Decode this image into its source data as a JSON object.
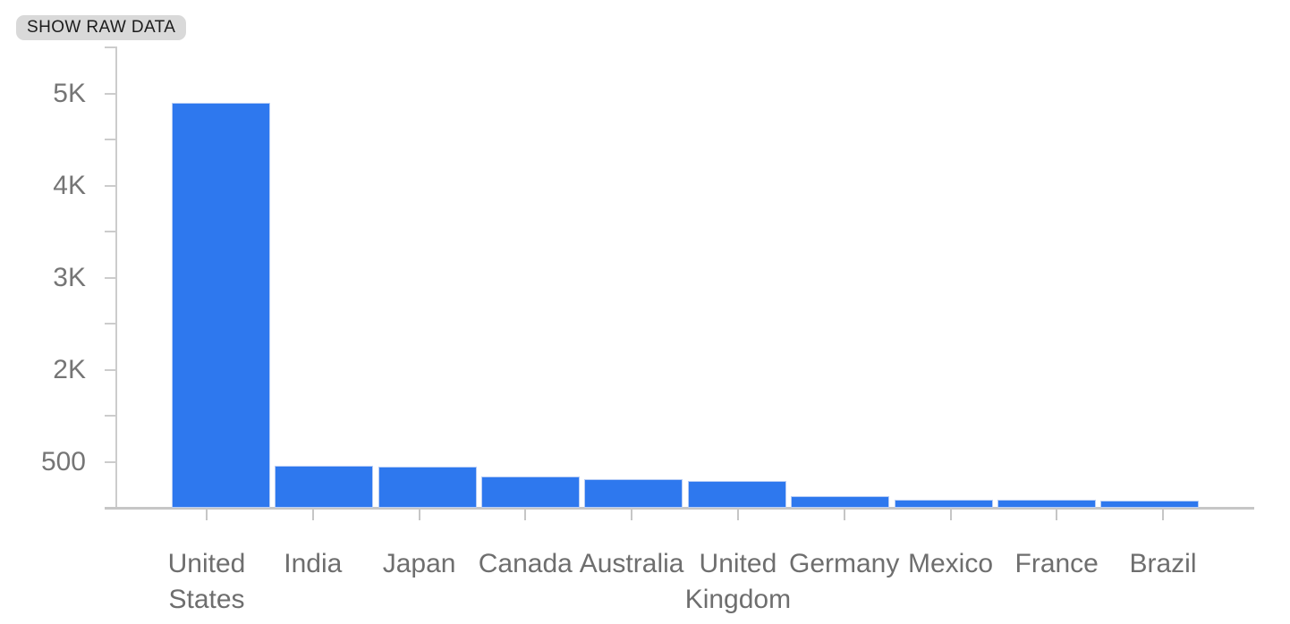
{
  "toolbar": {
    "show_raw_data_label": "SHOW RAW DATA"
  },
  "chart_data": {
    "type": "bar",
    "title": "",
    "xlabel": "",
    "ylabel": "",
    "categories": [
      "United States",
      "India",
      "Japan",
      "Canada",
      "Australia",
      "United Kingdom",
      "Germany",
      "Mexico",
      "France",
      "Brazil"
    ],
    "values": [
      4900,
      460,
      445,
      345,
      315,
      290,
      125,
      85,
      84,
      79
    ],
    "y_axis": {
      "tick_labels_top_to_bottom": [
        "5K",
        "4K",
        "3K",
        "2K",
        "500"
      ],
      "tick_values_top_to_bottom": [
        5000,
        4000,
        3000,
        2000,
        500
      ],
      "minor_ticks_between_majors": true,
      "baseline_value": 0
    },
    "ylim": [
      0,
      5500
    ],
    "grid": false,
    "legend": false,
    "colors": {
      "bar_fill": "#2e78ee",
      "bar_border": "#b7cdf6",
      "axis": "#cccccc",
      "x_axis": "#c6c6c6",
      "y_label_text": "#757575",
      "x_label_text": "#6e6e6e",
      "chip_background": "#d9d9d9",
      "chip_text": "#1c1c1c"
    }
  }
}
